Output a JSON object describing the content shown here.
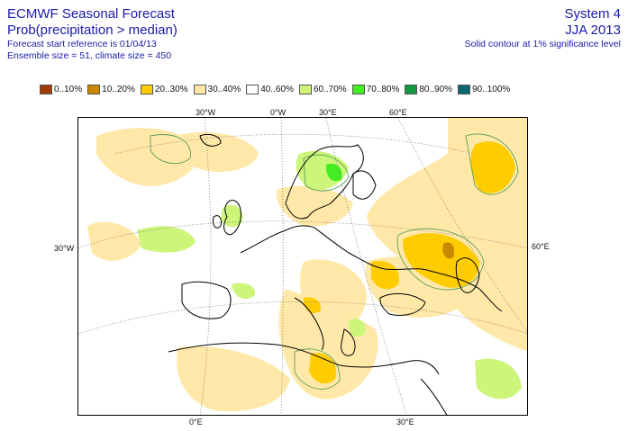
{
  "header": {
    "title": "ECMWF Seasonal Forecast",
    "subtitle": "Prob(precipitation > median)",
    "start_ref": "Forecast start reference is 01/04/13",
    "ensemble": "Ensemble size = 51, climate size = 450",
    "system": "System 4",
    "period": "JJA 2013",
    "contour_note": "Solid contour at 1% significance level"
  },
  "legend": [
    {
      "label": "0..10%",
      "color": "#a03c00"
    },
    {
      "label": "10..20%",
      "color": "#c88800"
    },
    {
      "label": "20..30%",
      "color": "#ffcc00"
    },
    {
      "label": "30..40%",
      "color": "#ffe8a8"
    },
    {
      "label": "40..60%",
      "color": "#ffffff"
    },
    {
      "label": "60..70%",
      "color": "#ccf57a"
    },
    {
      "label": "70..80%",
      "color": "#44ee22"
    },
    {
      "label": "80..90%",
      "color": "#119944"
    },
    {
      "label": "90..100%",
      "color": "#0a6670"
    }
  ],
  "axes": {
    "top": [
      "30°W",
      "0°W",
      "30°E",
      "60°E"
    ],
    "left": "30°W",
    "right": "60°E",
    "bottom": [
      "0°E",
      "30°E"
    ]
  },
  "colors": {
    "text": "#1a1aa8",
    "coast": "#000000",
    "contour": "#5aa05a",
    "grid": "#777777"
  }
}
